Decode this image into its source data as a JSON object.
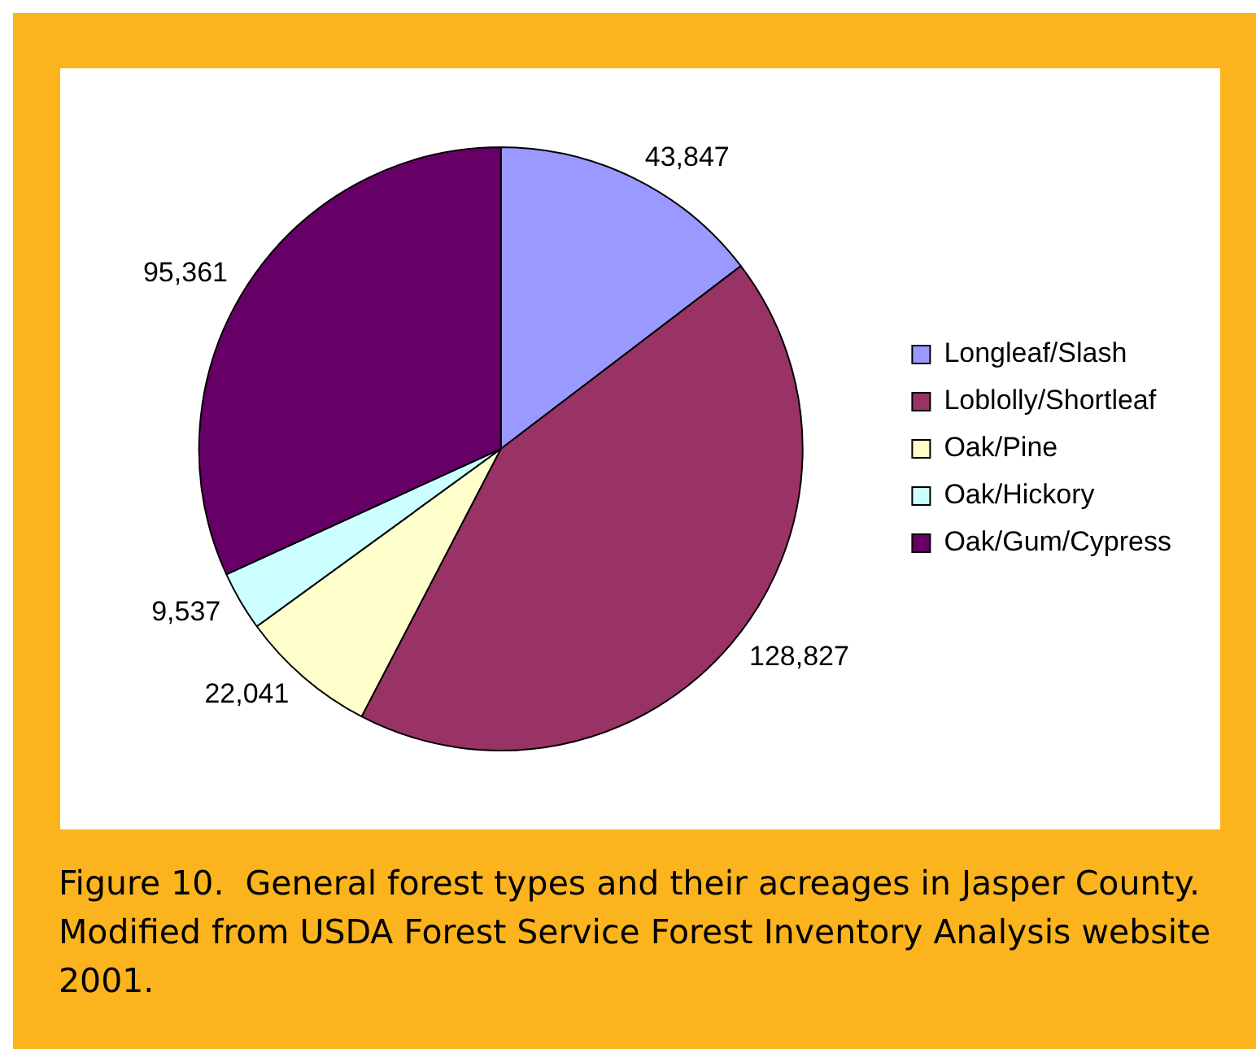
{
  "chart_data": {
    "type": "pie",
    "categories": [
      "Longleaf/Slash",
      "Loblolly/Shortleaf",
      "Oak/Pine",
      "Oak/Hickory",
      "Oak/Gum/Cypress"
    ],
    "values": [
      43847,
      128827,
      22041,
      9537,
      95361
    ],
    "colors": [
      "#9999ff",
      "#993366",
      "#ffffcc",
      "#ccffff",
      "#660066"
    ],
    "value_labels": [
      "43,847",
      "128,827",
      "22,041",
      "9,537",
      "95,361"
    ],
    "legend": "right",
    "annotations": [
      "Figure 10.  General forest types and their acreages in Jasper County.  Modified from USDA Forest Service Forest Inventory Analysis website 2001."
    ]
  }
}
